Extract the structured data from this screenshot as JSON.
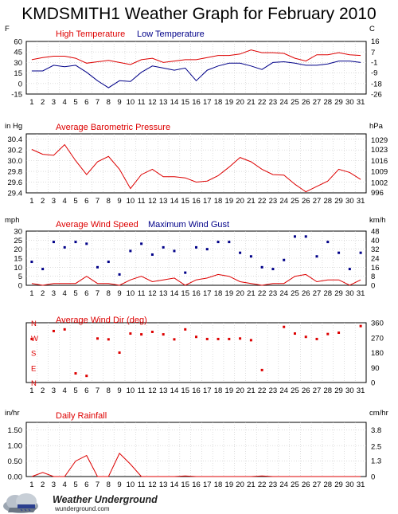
{
  "title": "KMDSMITH1 Weather Graph for February 2010",
  "footer": {
    "brand": "Weather Underground",
    "url": "wunderground.com"
  },
  "colors": {
    "red": "#dd0000",
    "blue": "#000088",
    "grid": "#c8c8c8"
  },
  "chart_data": [
    {
      "id": "temperature",
      "type": "line",
      "left_unit": "F",
      "right_unit": "C",
      "x": [
        1,
        2,
        3,
        4,
        5,
        6,
        7,
        8,
        9,
        10,
        11,
        12,
        13,
        14,
        15,
        16,
        17,
        18,
        19,
        20,
        21,
        22,
        23,
        24,
        25,
        26,
        27,
        28,
        29,
        30,
        31
      ],
      "ylim": [
        -15,
        60
      ],
      "yticks": [
        -15,
        0,
        15,
        30,
        45,
        60
      ],
      "yticklabels": [
        "-15",
        "0",
        "15",
        "30",
        "45",
        "60"
      ],
      "right_ticks": [
        16,
        7,
        -1,
        -9,
        -18,
        -26
      ],
      "right_ticks_f": [
        60.8,
        44.6,
        30.2,
        15.8,
        -0.4,
        -14.8
      ],
      "series": [
        {
          "name": "High Temperature",
          "color": "#dd0000",
          "values": [
            34,
            37,
            39,
            39,
            36,
            29,
            31,
            33,
            30,
            27,
            34,
            36,
            30,
            32,
            34,
            34,
            37,
            40,
            40,
            42,
            48,
            44,
            44,
            43,
            36,
            32,
            41,
            41,
            44,
            41,
            40
          ]
        },
        {
          "name": "Low Temperature",
          "color": "#000088",
          "values": [
            18,
            18,
            26,
            24,
            26,
            16,
            4,
            -6,
            4,
            3,
            16,
            25,
            22,
            19,
            22,
            4,
            19,
            25,
            29,
            29,
            25,
            20,
            30,
            31,
            29,
            26,
            26,
            28,
            32,
            32,
            30
          ]
        }
      ]
    },
    {
      "id": "pressure",
      "type": "line",
      "left_unit": "in Hg",
      "right_unit": "hPa",
      "x": [
        1,
        2,
        3,
        4,
        5,
        6,
        7,
        8,
        9,
        10,
        11,
        12,
        13,
        14,
        15,
        16,
        17,
        18,
        19,
        20,
        21,
        22,
        23,
        24,
        25,
        26,
        27,
        28,
        29,
        30,
        31
      ],
      "ylim": [
        29.4,
        30.5
      ],
      "yticks": [
        29.4,
        29.6,
        29.8,
        30.0,
        30.2,
        30.4
      ],
      "yticklabels": [
        "29.4",
        "29.6",
        "29.8",
        "30.0",
        "30.2",
        "30.4"
      ],
      "right_ticks": [
        996,
        1002,
        1009,
        1016,
        1023,
        1029
      ],
      "right_ticks_inhg": [
        29.41,
        29.59,
        29.8,
        30.0,
        30.21,
        30.39
      ],
      "series": [
        {
          "name": "Average Barometric Pressure",
          "color": "#dd0000",
          "values": [
            30.21,
            30.12,
            30.1,
            30.3,
            30.0,
            29.74,
            29.98,
            30.08,
            29.84,
            29.48,
            29.74,
            29.84,
            29.7,
            29.7,
            29.68,
            29.6,
            29.62,
            29.72,
            29.88,
            30.06,
            29.98,
            29.84,
            29.74,
            29.73,
            29.56,
            29.42,
            29.52,
            29.62,
            29.84,
            29.78,
            29.65
          ]
        }
      ]
    },
    {
      "id": "wind",
      "type": "line",
      "left_unit": "mph",
      "right_unit": "km/h",
      "x": [
        1,
        2,
        3,
        4,
        5,
        6,
        7,
        8,
        9,
        10,
        11,
        12,
        13,
        14,
        15,
        16,
        17,
        18,
        19,
        20,
        21,
        22,
        23,
        24,
        25,
        26,
        27,
        28,
        29,
        30,
        31
      ],
      "ylim": [
        0,
        30
      ],
      "yticks": [
        0,
        5,
        10,
        15,
        20,
        25,
        30
      ],
      "yticklabels": [
        "0",
        "5",
        "10",
        "15",
        "20",
        "25",
        "30"
      ],
      "right_ticks": [
        0,
        8,
        16,
        24,
        32,
        40,
        48
      ],
      "right_ticks_mph": [
        0,
        5,
        10,
        15,
        20,
        25,
        30
      ],
      "series": [
        {
          "name": "Average Wind Speed",
          "color": "#dd0000",
          "style": "line",
          "values": [
            1,
            0,
            1,
            1,
            1,
            5,
            1,
            1,
            0,
            3,
            5,
            2,
            3,
            4,
            0,
            3,
            4,
            6,
            5,
            2,
            1,
            0,
            1,
            1,
            5,
            6,
            2,
            3,
            3,
            0,
            3
          ]
        },
        {
          "name": "Maximum Wind Gust",
          "color": "#000088",
          "style": "points",
          "values": [
            13,
            9,
            24,
            21,
            24,
            23,
            10,
            13,
            6,
            19,
            23,
            17,
            21,
            19,
            7,
            21,
            20,
            24,
            24,
            18,
            16,
            10,
            9,
            14,
            27,
            27,
            16,
            24,
            18,
            9,
            18
          ]
        }
      ]
    },
    {
      "id": "winddir",
      "type": "scatter",
      "x": [
        1,
        2,
        3,
        4,
        5,
        6,
        7,
        8,
        9,
        10,
        11,
        12,
        13,
        14,
        15,
        16,
        17,
        18,
        19,
        20,
        21,
        22,
        23,
        24,
        25,
        26,
        27,
        28,
        29,
        30,
        31
      ],
      "ylim": [
        0,
        360
      ],
      "left_labels": [
        "N",
        "W",
        "S",
        "E",
        "N"
      ],
      "left_label_degrees": [
        360,
        270,
        180,
        90,
        0
      ],
      "right_ticks": [
        0,
        90,
        180,
        270,
        360
      ],
      "series": [
        {
          "name": "Average Wind Dir (deg)",
          "color": "#dd0000",
          "values": [
            262,
            null,
            310,
            320,
            55,
            40,
            265,
            260,
            180,
            295,
            290,
            305,
            290,
            260,
            320,
            275,
            262,
            262,
            262,
            265,
            255,
            75,
            null,
            335,
            295,
            275,
            262,
            292,
            300,
            null,
            340
          ]
        }
      ]
    },
    {
      "id": "rainfall",
      "type": "line",
      "left_unit": "in/hr",
      "right_unit": "cm/hr",
      "x": [
        1,
        2,
        3,
        4,
        5,
        6,
        7,
        8,
        9,
        10,
        11,
        12,
        13,
        14,
        15,
        16,
        17,
        18,
        19,
        20,
        21,
        22,
        23,
        24,
        25,
        26,
        27,
        28,
        29,
        30,
        31
      ],
      "ylim": [
        0,
        1.75
      ],
      "yticks": [
        0.0,
        0.5,
        1.0,
        1.5
      ],
      "yticklabels": [
        "0.00",
        "0.50",
        "1.00",
        "1.50"
      ],
      "right_ticks": [
        0.0,
        1.3,
        2.5,
        3.8
      ],
      "right_ticks_in": [
        0.0,
        0.51,
        0.98,
        1.5
      ],
      "series": [
        {
          "name": "Daily Rainfall",
          "color": "#dd0000",
          "values": [
            0,
            0.13,
            0,
            0,
            0.5,
            0.68,
            0,
            0,
            0.75,
            0.4,
            0,
            0,
            0,
            0,
            0.02,
            0,
            0,
            0,
            0,
            0,
            0,
            0.02,
            0,
            0,
            0,
            0,
            0,
            0,
            0,
            0,
            0
          ]
        }
      ]
    }
  ]
}
